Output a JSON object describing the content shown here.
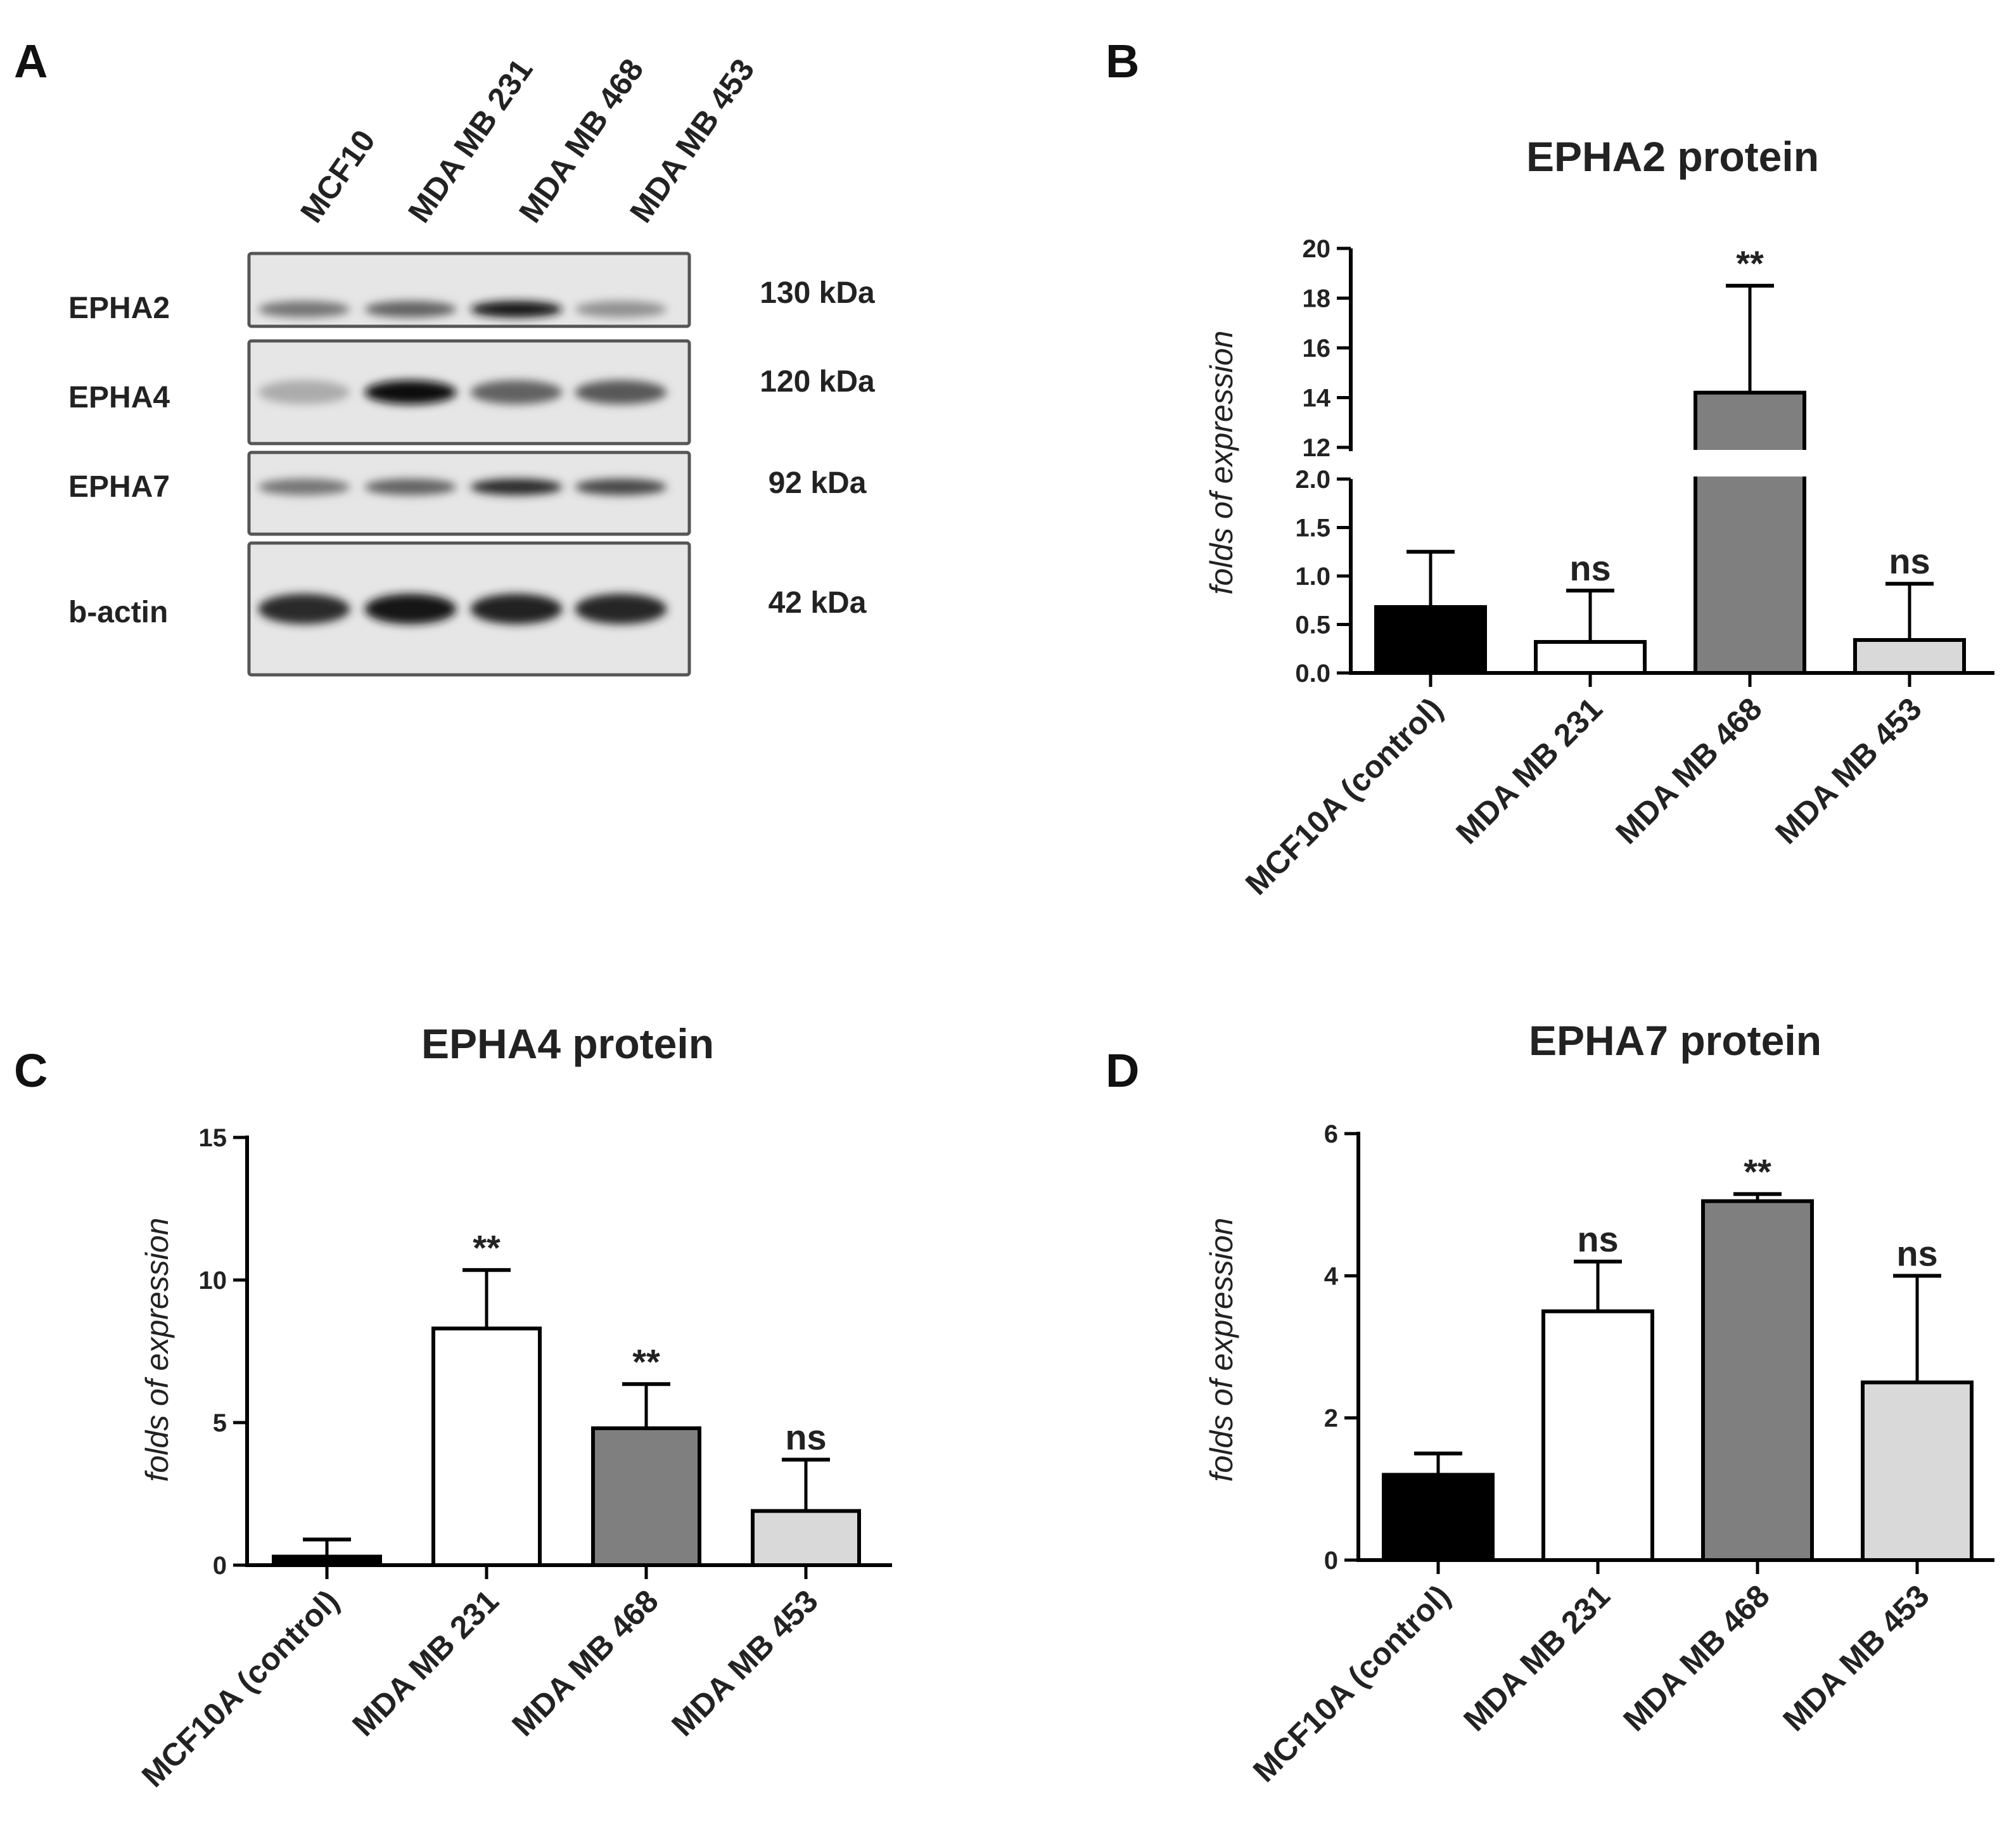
{
  "panels": {
    "a": "A",
    "b": "B",
    "c": "C",
    "d": "D"
  },
  "blot": {
    "lanes": [
      "MCF10",
      "MDA MB 231",
      "MDA MB 468",
      "MDA MB 453"
    ],
    "rows": [
      {
        "label": "EPHA2",
        "size": "130 kDa",
        "intensity": [
          0.45,
          0.55,
          0.95,
          0.3
        ]
      },
      {
        "label": "EPHA4",
        "size": "120 kDa",
        "intensity": [
          0.15,
          1.0,
          0.55,
          0.6
        ]
      },
      {
        "label": "EPHA7",
        "size": "92 kDa",
        "intensity": [
          0.45,
          0.55,
          0.85,
          0.7
        ]
      },
      {
        "label": "b-actin",
        "size": "42 kDa",
        "intensity": [
          0.85,
          0.95,
          0.9,
          0.88
        ]
      }
    ]
  },
  "colors": {
    "black": "#000000",
    "white": "#ffffff",
    "dark_gray": "#7f7f7f",
    "light_gray": "#d9d9d9",
    "axis": "#000000"
  },
  "chart_data": [
    {
      "id": "B",
      "type": "bar",
      "title": "EPHA2 protein",
      "ylabel": "folds of expression",
      "categories": [
        "MCF10A (control)",
        "MDA MB 231",
        "MDA MB 468",
        "MDA MB 453"
      ],
      "values": [
        0.68,
        0.32,
        14.2,
        0.34
      ],
      "errors": [
        0.57,
        0.53,
        4.3,
        0.58
      ],
      "annotations": [
        "",
        "ns",
        "**",
        "ns"
      ],
      "bar_colors": [
        "#000000",
        "#ffffff",
        "#7f7f7f",
        "#d9d9d9"
      ],
      "broken_axis": {
        "lower": [
          0,
          2.0
        ],
        "upper": [
          12,
          20
        ]
      },
      "yticks_lower": [
        "0.0",
        "0.5",
        "1.0",
        "1.5",
        "2.0"
      ],
      "yticks_upper": [
        "12",
        "14",
        "16",
        "18",
        "20"
      ]
    },
    {
      "id": "C",
      "type": "bar",
      "title": "EPHA4 protein",
      "ylabel": "folds of expression",
      "categories": [
        "MCF10A (control)",
        "MDA MB 231",
        "MDA MB 468",
        "MDA MB 453"
      ],
      "values": [
        0.3,
        8.3,
        4.8,
        1.9
      ],
      "errors": [
        0.6,
        2.05,
        1.55,
        1.8
      ],
      "annotations": [
        "",
        "**",
        "**",
        "ns"
      ],
      "bar_colors": [
        "#000000",
        "#ffffff",
        "#7f7f7f",
        "#d9d9d9"
      ],
      "ylim": [
        0,
        15
      ],
      "yticks": [
        "0",
        "5",
        "10",
        "15"
      ]
    },
    {
      "id": "D",
      "type": "bar",
      "title": "EPHA7 protein",
      "ylabel": "folds of expression",
      "categories": [
        "MCF10A (control)",
        "MDA MB 231",
        "MDA MB 468",
        "MDA MB 453"
      ],
      "values": [
        1.2,
        3.5,
        5.05,
        2.5
      ],
      "errors": [
        0.3,
        0.7,
        0.1,
        1.5
      ],
      "annotations": [
        "",
        "ns",
        "**",
        "ns"
      ],
      "bar_colors": [
        "#000000",
        "#ffffff",
        "#7f7f7f",
        "#d9d9d9"
      ],
      "ylim": [
        0,
        6
      ],
      "yticks": [
        "0",
        "2",
        "4",
        "6"
      ]
    }
  ]
}
